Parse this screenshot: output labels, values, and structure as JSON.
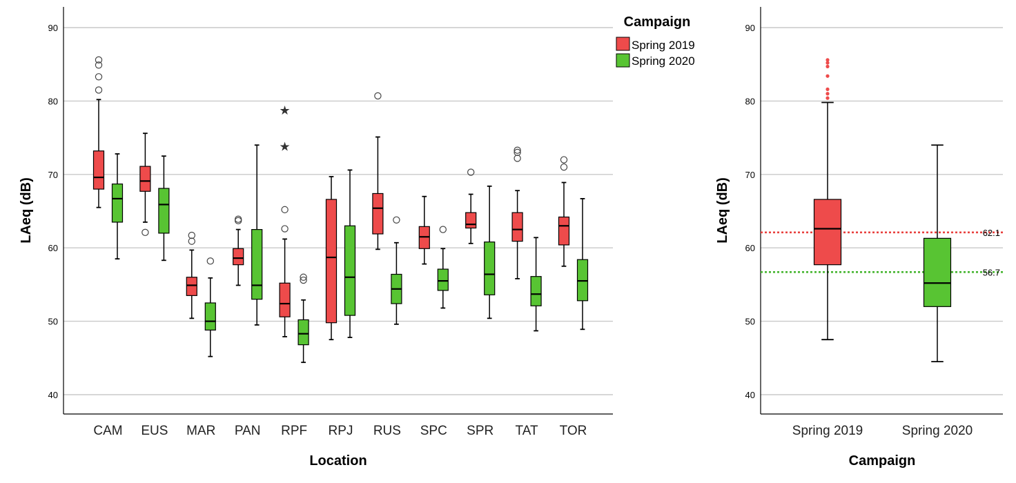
{
  "colors": {
    "spring2019": "#EE4B4B",
    "spring2020": "#58C433",
    "ref2019": "#E8413F",
    "ref2020": "#45B52F",
    "grid": "#C9C9C9",
    "axis": "#000000"
  },
  "legend": {
    "title": "Campaign",
    "items": [
      "Spring 2019",
      "Spring 2020"
    ]
  },
  "chart_data": [
    {
      "type": "boxplot",
      "xlabel": "Location",
      "ylabel": "LAeq (dB)",
      "ylim": [
        37.3,
        93.8
      ],
      "yticks": [
        40,
        50,
        60,
        70,
        80,
        90
      ],
      "grid": true,
      "legend_position": "top-right",
      "categories": [
        "CAM",
        "EUS",
        "MAR",
        "PAN",
        "RPF",
        "RPJ",
        "RUS",
        "SPC",
        "SPR",
        "TAT",
        "TOR"
      ],
      "series": [
        {
          "name": "Spring 2019",
          "boxes": [
            {
              "min": 65.5,
              "q1": 68.0,
              "median": 69.6,
              "q3": 73.2,
              "max": 80.2,
              "outliers": [
                81.5,
                83.3,
                84.9,
                85.6
              ],
              "extremes": []
            },
            {
              "min": 63.5,
              "q1": 67.7,
              "median": 69.1,
              "q3": 71.1,
              "max": 75.6,
              "outliers": [
                62.1
              ],
              "extremes": []
            },
            {
              "min": 50.4,
              "q1": 53.5,
              "median": 54.9,
              "q3": 56.0,
              "max": 59.7,
              "outliers": [
                60.9,
                61.7
              ],
              "extremes": []
            },
            {
              "min": 54.9,
              "q1": 57.7,
              "median": 58.6,
              "q3": 59.9,
              "max": 62.5,
              "outliers": [
                63.7,
                63.9
              ],
              "extremes": []
            },
            {
              "min": 47.9,
              "q1": 50.6,
              "median": 52.4,
              "q3": 55.2,
              "max": 61.2,
              "outliers": [
                62.6,
                65.2
              ],
              "extremes": [
                73.8,
                78.7
              ]
            },
            {
              "min": 47.5,
              "q1": 49.8,
              "median": 58.7,
              "q3": 66.6,
              "max": 69.7,
              "outliers": [],
              "extremes": []
            },
            {
              "min": 59.8,
              "q1": 61.9,
              "median": 65.4,
              "q3": 67.4,
              "max": 75.1,
              "outliers": [
                80.7
              ],
              "extremes": []
            },
            {
              "min": 57.8,
              "q1": 59.9,
              "median": 61.5,
              "q3": 62.9,
              "max": 67.0,
              "outliers": [],
              "extremes": []
            },
            {
              "min": 60.6,
              "q1": 62.7,
              "median": 63.2,
              "q3": 64.8,
              "max": 67.3,
              "outliers": [
                70.3
              ],
              "extremes": []
            },
            {
              "min": 55.8,
              "q1": 60.9,
              "median": 62.5,
              "q3": 64.8,
              "max": 67.8,
              "outliers": [
                72.2,
                73.0,
                73.3
              ],
              "extremes": []
            },
            {
              "min": 57.5,
              "q1": 60.4,
              "median": 63.0,
              "q3": 64.2,
              "max": 68.9,
              "outliers": [
                71.0,
                72.0
              ],
              "extremes": []
            }
          ]
        },
        {
          "name": "Spring 2020",
          "boxes": [
            {
              "min": 58.5,
              "q1": 63.5,
              "median": 66.7,
              "q3": 68.7,
              "max": 72.8,
              "outliers": [],
              "extremes": []
            },
            {
              "min": 58.3,
              "q1": 62.0,
              "median": 65.9,
              "q3": 68.1,
              "max": 72.5,
              "outliers": [],
              "extremes": []
            },
            {
              "min": 45.2,
              "q1": 48.8,
              "median": 50.0,
              "q3": 52.5,
              "max": 55.9,
              "outliers": [
                58.2
              ],
              "extremes": []
            },
            {
              "min": 49.5,
              "q1": 53.0,
              "median": 54.9,
              "q3": 62.5,
              "max": 74.0,
              "outliers": [],
              "extremes": []
            },
            {
              "min": 44.4,
              "q1": 46.8,
              "median": 48.3,
              "q3": 50.2,
              "max": 52.9,
              "outliers": [
                55.6,
                56.0
              ],
              "extremes": []
            },
            {
              "min": 47.8,
              "q1": 50.8,
              "median": 56.0,
              "q3": 63.0,
              "max": 70.6,
              "outliers": [],
              "extremes": []
            },
            {
              "min": 49.6,
              "q1": 52.4,
              "median": 54.4,
              "q3": 56.4,
              "max": 60.7,
              "outliers": [
                63.8
              ],
              "extremes": []
            },
            {
              "min": 51.8,
              "q1": 54.2,
              "median": 55.5,
              "q3": 57.1,
              "max": 59.9,
              "outliers": [
                62.5
              ],
              "extremes": []
            },
            {
              "min": 50.4,
              "q1": 53.6,
              "median": 56.4,
              "q3": 60.8,
              "max": 68.4,
              "outliers": [],
              "extremes": []
            },
            {
              "min": 48.7,
              "q1": 52.1,
              "median": 53.7,
              "q3": 56.1,
              "max": 61.4,
              "outliers": [],
              "extremes": []
            },
            {
              "min": 48.9,
              "q1": 52.8,
              "median": 55.5,
              "q3": 58.4,
              "max": 66.7,
              "outliers": [],
              "extremes": []
            }
          ]
        }
      ]
    },
    {
      "type": "boxplot",
      "xlabel": "Campaign",
      "ylabel": "LAeq (dB)",
      "ylim": [
        37.3,
        93.8
      ],
      "yticks": [
        40,
        50,
        60,
        70,
        80,
        90
      ],
      "grid": true,
      "categories": [
        "Spring 2019",
        "Spring 2020"
      ],
      "boxes": [
        {
          "min": 47.5,
          "q1": 57.7,
          "median": 62.6,
          "q3": 66.6,
          "max": 79.8,
          "outliers": [
            80.4,
            81.0,
            81.6,
            83.4,
            84.7,
            85.2,
            85.6
          ],
          "extremes": []
        },
        {
          "min": 44.5,
          "q1": 52.0,
          "median": 55.2,
          "q3": 61.3,
          "max": 74.0,
          "outliers": [],
          "extremes": []
        }
      ],
      "reference_lines": [
        {
          "value": 62.1,
          "label": "62.1"
        },
        {
          "value": 56.7,
          "label": "56.7"
        }
      ]
    }
  ]
}
